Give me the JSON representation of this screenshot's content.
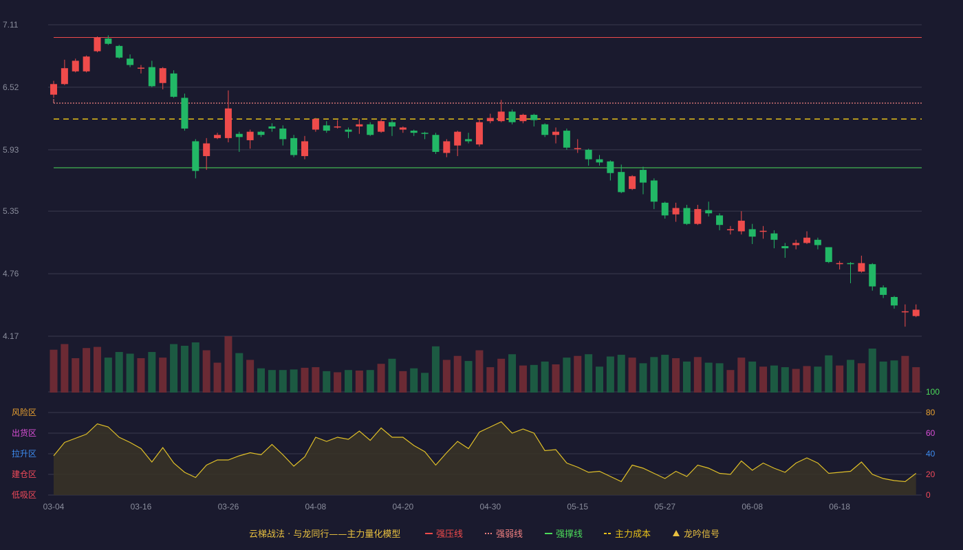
{
  "chart_data": {
    "type": "candlestick",
    "title": "",
    "price_axis": {
      "ticks": [
        "7.11",
        "6.52",
        "5.93",
        "5.35",
        "4.76",
        "4.17"
      ],
      "range": [
        4.17,
        7.11
      ]
    },
    "indicator_axis": {
      "ticks": [
        "100",
        "80",
        "60",
        "40",
        "20",
        "0"
      ],
      "range": [
        0,
        100
      ]
    },
    "x_axis_ticks": [
      {
        "label": "03-04",
        "index": 0
      },
      {
        "label": "03-16",
        "index": 8
      },
      {
        "label": "03-26",
        "index": 16
      },
      {
        "label": "04-08",
        "index": 24
      },
      {
        "label": "04-20",
        "index": 32
      },
      {
        "label": "04-30",
        "index": 40
      },
      {
        "label": "05-15",
        "index": 48
      },
      {
        "label": "05-27",
        "index": 56
      },
      {
        "label": "06-08",
        "index": 64
      },
      {
        "label": "06-18",
        "index": 72
      }
    ],
    "reference_lines": [
      {
        "name": "强压线",
        "value": 6.99,
        "color": "#ef4b4b",
        "style": "solid"
      },
      {
        "name": "强弱线",
        "value": 6.37,
        "color": "#f08080",
        "style": "dotted"
      },
      {
        "name": "主力成本",
        "value": 6.22,
        "color": "#e8c21a",
        "style": "dashed"
      },
      {
        "name": "强撑线",
        "value": 5.76,
        "color": "#4cdc5a",
        "style": "solid"
      }
    ],
    "candles": [
      [
        6.45,
        6.55,
        6.58,
        6.42
      ],
      [
        6.55,
        6.7,
        6.78,
        6.54
      ],
      [
        6.67,
        6.77,
        6.79,
        6.66
      ],
      [
        6.67,
        6.81,
        6.82,
        6.66
      ],
      [
        6.86,
        6.99,
        7.0,
        6.85
      ],
      [
        6.98,
        6.93,
        7.01,
        6.92
      ],
      [
        6.91,
        6.8,
        6.92,
        6.79
      ],
      [
        6.79,
        6.73,
        6.83,
        6.71
      ],
      [
        6.7,
        6.7,
        6.73,
        6.65
      ],
      [
        6.71,
        6.53,
        6.77,
        6.52
      ],
      [
        6.56,
        6.7,
        6.71,
        6.5
      ],
      [
        6.65,
        6.43,
        6.68,
        6.42
      ],
      [
        6.42,
        6.13,
        6.46,
        6.11
      ],
      [
        6.01,
        5.73,
        6.03,
        5.66
      ],
      [
        5.87,
        5.99,
        6.04,
        5.74
      ],
      [
        6.04,
        6.07,
        6.09,
        6.03
      ],
      [
        6.04,
        6.32,
        6.49,
        6.0
      ],
      [
        6.08,
        6.05,
        6.1,
        5.91
      ],
      [
        6.02,
        6.1,
        6.12,
        5.94
      ],
      [
        6.1,
        6.07,
        6.11,
        6.05
      ],
      [
        6.15,
        6.13,
        6.18,
        6.1
      ],
      [
        6.13,
        6.03,
        6.16,
        5.97
      ],
      [
        6.04,
        5.88,
        6.07,
        5.86
      ],
      [
        5.87,
        6.01,
        6.06,
        5.84
      ],
      [
        6.12,
        6.22,
        6.23,
        6.1
      ],
      [
        6.16,
        6.11,
        6.2,
        6.09
      ],
      [
        6.14,
        6.15,
        6.21,
        6.13
      ],
      [
        6.12,
        6.1,
        6.14,
        6.04
      ],
      [
        6.15,
        6.17,
        6.22,
        6.08
      ],
      [
        6.17,
        6.07,
        6.19,
        6.06
      ],
      [
        6.1,
        6.2,
        6.22,
        6.09
      ],
      [
        6.19,
        6.15,
        6.21,
        6.06
      ],
      [
        6.12,
        6.14,
        6.15,
        6.09
      ],
      [
        6.11,
        6.09,
        6.12,
        6.06
      ],
      [
        6.09,
        6.08,
        6.1,
        6.03
      ],
      [
        6.07,
        5.91,
        6.09,
        5.89
      ],
      [
        5.9,
        6.01,
        6.03,
        5.86
      ],
      [
        5.97,
        6.1,
        6.11,
        5.87
      ],
      [
        6.03,
        6.01,
        6.09,
        5.99
      ],
      [
        5.98,
        6.19,
        6.22,
        5.96
      ],
      [
        6.2,
        6.23,
        6.27,
        6.18
      ],
      [
        6.2,
        6.29,
        6.4,
        6.19
      ],
      [
        6.29,
        6.19,
        6.31,
        6.17
      ],
      [
        6.2,
        6.26,
        6.27,
        6.18
      ],
      [
        6.26,
        6.21,
        6.27,
        6.15
      ],
      [
        6.17,
        6.07,
        6.18,
        6.05
      ],
      [
        6.07,
        6.1,
        6.14,
        5.99
      ],
      [
        6.11,
        5.95,
        6.13,
        5.93
      ],
      [
        5.94,
        5.94,
        6.03,
        5.9
      ],
      [
        5.93,
        5.84,
        5.94,
        5.78
      ],
      [
        5.84,
        5.81,
        5.88,
        5.78
      ],
      [
        5.82,
        5.71,
        5.83,
        5.64
      ],
      [
        5.72,
        5.53,
        5.79,
        5.52
      ],
      [
        5.56,
        5.68,
        5.69,
        5.55
      ],
      [
        5.74,
        5.62,
        5.77,
        5.51
      ],
      [
        5.64,
        5.44,
        5.66,
        5.37
      ],
      [
        5.43,
        5.31,
        5.44,
        5.28
      ],
      [
        5.32,
        5.38,
        5.43,
        5.25
      ],
      [
        5.38,
        5.23,
        5.41,
        5.22
      ],
      [
        5.23,
        5.37,
        5.41,
        5.22
      ],
      [
        5.36,
        5.33,
        5.44,
        5.3
      ],
      [
        5.31,
        5.22,
        5.33,
        5.17
      ],
      [
        5.17,
        5.18,
        5.21,
        5.13
      ],
      [
        5.16,
        5.26,
        5.35,
        5.13
      ],
      [
        5.18,
        5.11,
        5.23,
        5.04
      ],
      [
        5.16,
        5.16,
        5.21,
        5.09
      ],
      [
        5.14,
        5.08,
        5.17,
        5.0
      ],
      [
        5.02,
        5.0,
        5.05,
        4.91
      ],
      [
        5.03,
        5.05,
        5.08,
        4.99
      ],
      [
        5.05,
        5.1,
        5.16,
        5.04
      ],
      [
        5.08,
        5.03,
        5.1,
        4.99
      ],
      [
        5.01,
        4.87,
        5.01,
        4.86
      ],
      [
        4.85,
        4.86,
        4.88,
        4.8
      ],
      [
        4.86,
        4.85,
        4.87,
        4.67
      ],
      [
        4.78,
        4.86,
        4.93,
        4.77
      ],
      [
        4.85,
        4.64,
        4.86,
        4.6
      ],
      [
        4.63,
        4.56,
        4.65,
        4.53
      ],
      [
        4.54,
        4.46,
        4.55,
        4.43
      ],
      [
        4.4,
        4.4,
        4.47,
        4.26
      ],
      [
        4.36,
        4.42,
        4.47,
        4.35
      ]
    ],
    "volume": [
      76,
      86,
      61,
      79,
      81,
      62,
      72,
      69,
      61,
      72,
      62,
      86,
      83,
      89,
      75,
      53,
      100,
      70,
      58,
      43,
      40,
      40,
      41,
      44,
      45,
      38,
      36,
      40,
      39,
      40,
      51,
      60,
      38,
      43,
      35,
      82,
      58,
      65,
      56,
      75,
      45,
      60,
      68,
      48,
      49,
      55,
      50,
      62,
      65,
      68,
      46,
      64,
      67,
      62,
      52,
      63,
      67,
      61,
      55,
      63,
      53,
      52,
      40,
      62,
      55,
      46,
      48,
      45,
      42,
      47,
      46,
      66,
      48,
      58,
      52,
      78,
      55,
      57,
      65,
      45
    ],
    "indicator": [
      38,
      51,
      55,
      59,
      69,
      66,
      56,
      51,
      45,
      32,
      46,
      31,
      22,
      17,
      29,
      34,
      34,
      38,
      41,
      39,
      49,
      39,
      28,
      37,
      56,
      52,
      56,
      54,
      62,
      53,
      65,
      56,
      56,
      48,
      42,
      29,
      41,
      52,
      45,
      61,
      66,
      71,
      60,
      64,
      60,
      43,
      44,
      31,
      27,
      22,
      23,
      18,
      13,
      29,
      26,
      21,
      16,
      23,
      18,
      29,
      26,
      21,
      20,
      33,
      24,
      31,
      26,
      22,
      31,
      36,
      31,
      21,
      22,
      23,
      32,
      20,
      16,
      14,
      13,
      21
    ],
    "zones": [
      {
        "label": "风险区",
        "color": "#e8a030"
      },
      {
        "label": "出货区",
        "color": "#d94fd6"
      },
      {
        "label": "拉升区",
        "color": "#3d8cf0"
      },
      {
        "label": "建仓区",
        "color": "#f04a5a"
      },
      {
        "label": "低吸区",
        "color": "#f04a5a"
      }
    ],
    "legend": [
      {
        "label": "云梯战法 · 与龙同行——主力量化模型",
        "color": "#e8c040",
        "symbol": "none"
      },
      {
        "label": "强压线",
        "color": "#ef4b4b",
        "symbol": "line"
      },
      {
        "label": "强弱线",
        "color": "#f08080",
        "symbol": "dotted"
      },
      {
        "label": "强撑线",
        "color": "#4cdc5a",
        "symbol": "line"
      },
      {
        "label": "主力成本",
        "color": "#e8c21a",
        "symbol": "dashed"
      },
      {
        "label": "龙吟信号",
        "color": "#e8c040",
        "symbol": "triangle"
      }
    ],
    "colors": {
      "background": "#1a1a2e",
      "up": "#ef4b4b",
      "down": "#22b866",
      "volume_up": "#6b2a34",
      "volume_down": "#1c5a42",
      "indicator_line": "#e0c028",
      "indicator_fill": "#3a3426",
      "grid": "#3a3b4e",
      "axis_text": "#8a8d9c"
    }
  }
}
